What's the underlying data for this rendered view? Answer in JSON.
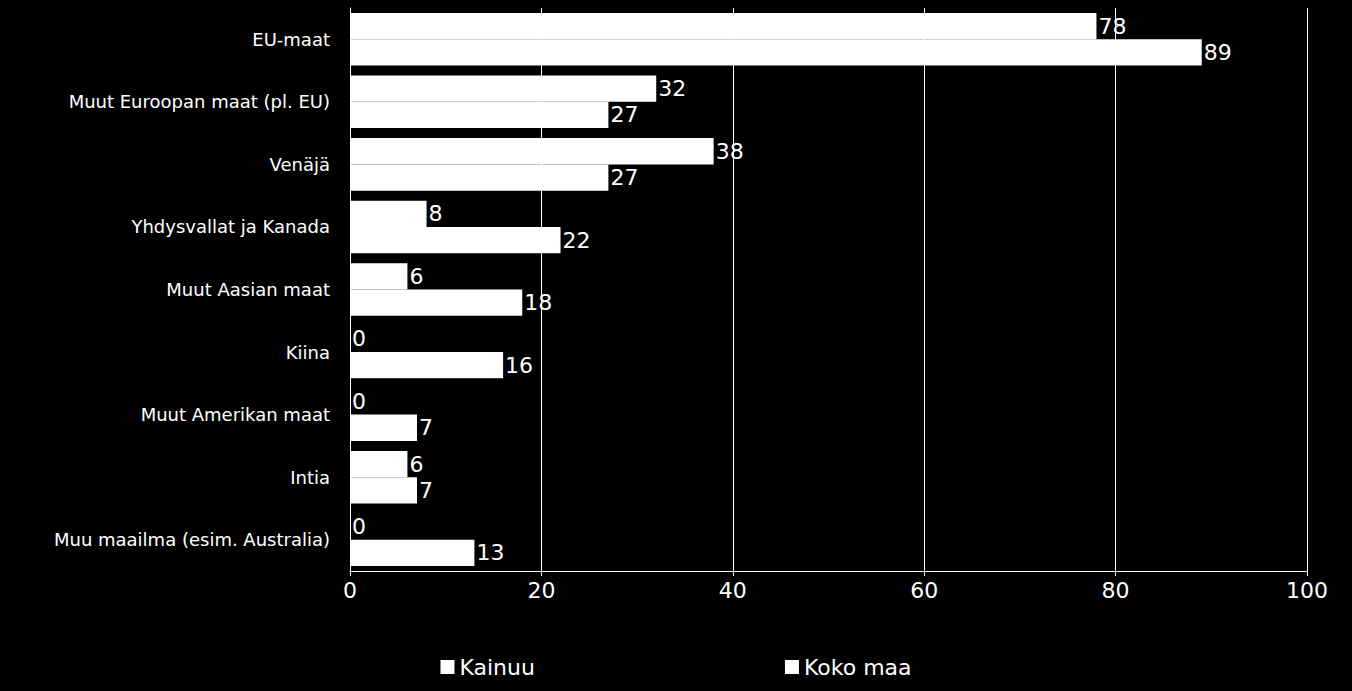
{
  "chart_data": {
    "type": "bar",
    "orientation": "horizontal",
    "categories": [
      "EU-maat",
      "Muut Euroopan maat (pl. EU)",
      "Venäjä",
      "Yhdysvallat ja Kanada",
      "Muut Aasian maat",
      "Kiina",
      "Muut Amerikan maat",
      "Intia",
      "Muu maailma (esim. Australia)"
    ],
    "series": [
      {
        "name": "Kainuu",
        "color": "#ffffff",
        "values": [
          78,
          32,
          38,
          8,
          6,
          0,
          0,
          6,
          0
        ]
      },
      {
        "name": "Koko maa",
        "color": "#ffffff",
        "values": [
          89,
          27,
          27,
          22,
          18,
          16,
          7,
          7,
          13
        ]
      }
    ],
    "xlim": [
      0,
      100
    ],
    "xticks": [
      0,
      20,
      40,
      60,
      80,
      100
    ],
    "grid": true,
    "data_labels": true,
    "legend": "bottom"
  }
}
